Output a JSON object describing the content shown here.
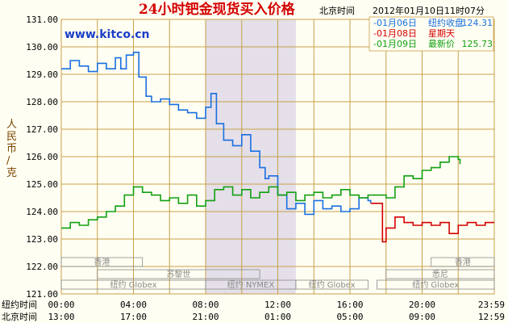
{
  "header": {
    "title": "24小时钯金现货买入价格",
    "location_label": "北京时间",
    "timestamp": "2012年01月10日11时07分"
  },
  "watermark": "www.kitco.cn",
  "ylabel": "人民币/克",
  "legend": [
    {
      "date": "-01月06日",
      "label": "纽约收盘",
      "value": "124.31",
      "color": "#1a6fe0"
    },
    {
      "date": "-01月08日",
      "label": "星期天",
      "value": "",
      "color": "#d40000"
    },
    {
      "date": "-01月09日",
      "label": "最新价",
      "value": "125.73",
      "color": "#12a012"
    }
  ],
  "time_rows": [
    {
      "label": "纽约时间",
      "ticks": [
        "00:00",
        "04:00",
        "08:00",
        "12:00",
        "16:00",
        "20:00",
        "23:59"
      ]
    },
    {
      "label": "北京时间",
      "ticks": [
        "13:00",
        "17:00",
        "21:00",
        "01:00",
        "05:00",
        "09:00",
        "12:59"
      ]
    }
  ],
  "markets": [
    {
      "name": "香港",
      "start_hour": 0,
      "end_hour": 4.5,
      "lane": 0
    },
    {
      "name": "香港",
      "start_hour": 20.5,
      "end_hour": 24,
      "lane": 0
    },
    {
      "name": "苏黎世",
      "start_hour": 2,
      "end_hour": 11,
      "lane": 1
    },
    {
      "name": "悉尼",
      "start_hour": 18,
      "end_hour": 24,
      "lane": 1
    },
    {
      "name": "纽约 Globex",
      "start_hour": 0,
      "end_hour": 8,
      "lane": 2
    },
    {
      "name": "纽约 NYMEX",
      "start_hour": 8,
      "end_hour": 13,
      "lane": 2
    },
    {
      "name": "纽约 Globex",
      "start_hour": 13,
      "end_hour": 17,
      "lane": 2
    },
    {
      "name": "纽约 Globex",
      "start_hour": 17.5,
      "end_hour": 24,
      "lane": 2
    }
  ],
  "colors": {
    "background": "#fffef2",
    "grid": "#c8a04a",
    "title": "#d40000",
    "watermark": "#1a3ec8",
    "nymex_band": "#e4dfe8",
    "axis_text": "#000000",
    "ylabel": "#7a4400"
  },
  "chart_data": {
    "type": "line",
    "title": "24小时钯金现货买入价格",
    "xlabel": "",
    "ylabel": "人民币/克",
    "ylim": [
      121,
      131
    ],
    "y_ticks": [
      121,
      122,
      123,
      124,
      125,
      126,
      127,
      128,
      129,
      130,
      131
    ],
    "y_tick_labels": [
      "121.00",
      "122.00",
      "123.00",
      "124.00",
      "125.00",
      "126.00",
      "127.00",
      "128.00",
      "129.00",
      "130.00",
      "131.00"
    ],
    "x_unit": "hours after 00:00 纽约时间",
    "xlim": [
      0,
      24
    ],
    "x_ticks": [
      0,
      4,
      8,
      12,
      16,
      20,
      24
    ],
    "nymex_session_hours": [
      8,
      13
    ],
    "grid": true,
    "legend_position": "top-right",
    "series": [
      {
        "name": "-01月06日 纽约收盘",
        "color": "#1a6fe0",
        "x": [
          0.0,
          0.5,
          1.0,
          1.5,
          2.0,
          2.5,
          3.0,
          3.3,
          3.6,
          4.0,
          4.3,
          4.7,
          5.0,
          5.5,
          6.0,
          6.5,
          7.0,
          7.5,
          8.0,
          8.3,
          8.6,
          9.0,
          9.5,
          10.0,
          10.5,
          11.0,
          11.3,
          11.5,
          12.0,
          12.5,
          13.0,
          13.5,
          14.0,
          14.5,
          15.0,
          15.5,
          16.0,
          16.5,
          17.0,
          17.15
        ],
        "y": [
          129.2,
          129.5,
          129.3,
          129.1,
          129.4,
          129.2,
          129.6,
          129.2,
          129.7,
          129.8,
          128.9,
          128.2,
          128.0,
          128.1,
          127.9,
          127.7,
          127.6,
          127.4,
          127.8,
          128.3,
          127.2,
          126.6,
          126.4,
          126.8,
          126.2,
          125.6,
          125.2,
          125.3,
          124.6,
          124.1,
          124.3,
          123.9,
          124.4,
          124.1,
          124.2,
          124.0,
          124.1,
          124.5,
          124.4,
          124.31
        ]
      },
      {
        "name": "-01月08日 星期天",
        "color": "#d40000",
        "x": [
          17.15,
          17.5,
          17.7,
          17.8,
          18.0,
          18.5,
          19.0,
          19.5,
          20.0,
          20.5,
          21.0,
          21.5,
          22.0,
          22.5,
          23.0,
          23.5,
          24.0
        ],
        "y": [
          124.3,
          124.3,
          124.3,
          122.9,
          123.4,
          123.8,
          123.6,
          123.5,
          123.6,
          123.5,
          123.6,
          123.2,
          123.5,
          123.6,
          123.5,
          123.6,
          123.6
        ]
      },
      {
        "name": "-01月09日 最新价",
        "color": "#12a012",
        "x": [
          0.0,
          0.5,
          1.0,
          1.5,
          2.0,
          2.5,
          3.0,
          3.5,
          4.0,
          4.5,
          5.0,
          5.5,
          6.0,
          6.5,
          7.0,
          7.5,
          8.0,
          8.5,
          9.0,
          9.5,
          10.0,
          10.5,
          11.0,
          11.5,
          12.0,
          12.5,
          13.0,
          13.5,
          14.0,
          14.5,
          15.0,
          15.5,
          16.0,
          16.5,
          17.0,
          17.5,
          18.0,
          18.5,
          19.0,
          19.5,
          20.0,
          20.5,
          21.0,
          21.5,
          22.0,
          22.1
        ],
        "y": [
          123.4,
          123.6,
          123.5,
          123.7,
          123.8,
          124.0,
          124.2,
          124.6,
          124.9,
          124.7,
          124.6,
          124.4,
          124.5,
          124.3,
          124.6,
          124.2,
          124.4,
          124.8,
          124.9,
          124.6,
          124.8,
          124.5,
          124.7,
          124.9,
          124.6,
          124.7,
          124.4,
          124.6,
          124.7,
          124.5,
          124.6,
          124.8,
          124.6,
          124.5,
          124.6,
          124.6,
          124.5,
          124.9,
          125.3,
          125.2,
          125.5,
          125.6,
          125.8,
          126.0,
          125.9,
          125.73
        ]
      }
    ]
  }
}
